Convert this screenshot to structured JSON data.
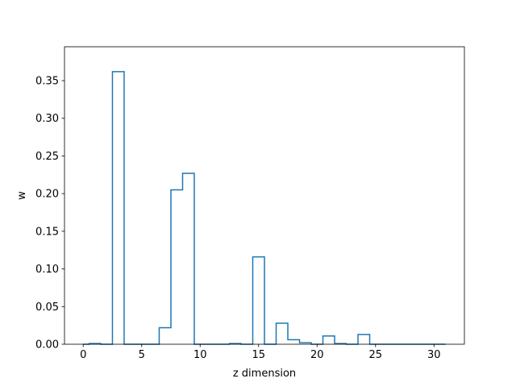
{
  "chart_data": {
    "type": "histogram-step",
    "title": "",
    "xlabel": "z dimension",
    "ylabel": "w",
    "xlim": [
      -1.6,
      32.6
    ],
    "ylim": [
      0,
      0.395
    ],
    "x_ticks": [
      0,
      5,
      10,
      15,
      20,
      25,
      30
    ],
    "y_ticks": [
      0.0,
      0.05,
      0.1,
      0.15,
      0.2,
      0.25,
      0.3,
      0.35
    ],
    "x_tick_labels": [
      "0",
      "5",
      "10",
      "15",
      "20",
      "25",
      "30"
    ],
    "y_tick_labels": [
      "0.00",
      "0.05",
      "0.10",
      "0.15",
      "0.20",
      "0.25",
      "0.30",
      "0.35"
    ],
    "series": [
      {
        "color": "#1f77b4",
        "x": [
          0,
          1,
          2,
          3,
          4,
          5,
          6,
          7,
          8,
          9,
          10,
          11,
          12,
          13,
          14,
          15,
          16,
          17,
          18,
          19,
          20,
          21,
          22,
          23,
          24,
          25,
          26,
          27,
          28,
          29,
          30,
          31
        ],
        "values": [
          0.0,
          0.001,
          0.0,
          0.362,
          0.0,
          0.0,
          0.0,
          0.022,
          0.205,
          0.227,
          0.0,
          0.0,
          0.0,
          0.001,
          0.0,
          0.116,
          0.0,
          0.028,
          0.006,
          0.002,
          0.0,
          0.011,
          0.001,
          0.0,
          0.013,
          0.0,
          0.0,
          0.0,
          0.0,
          0.0,
          0.0,
          0.0
        ]
      }
    ],
    "grid": false,
    "legend": "none"
  }
}
